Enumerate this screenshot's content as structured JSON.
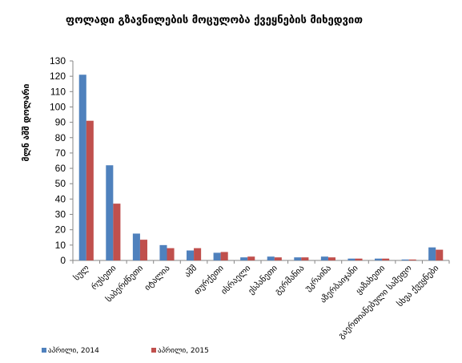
{
  "chart_data": {
    "type": "bar",
    "title": "ფოლადი გზავნილების მოცულობა ქვეყნების მიხედვით",
    "ylabel": "მლნ აშშ დოლარი",
    "xlabel": "",
    "ylim": [
      0,
      130
    ],
    "yticks": [
      0,
      10,
      20,
      30,
      40,
      50,
      60,
      70,
      80,
      90,
      100,
      110,
      120,
      130
    ],
    "grid": false,
    "legend_position": "bottom",
    "categories": [
      "სულ",
      "რუსეთი",
      "საბერძნეთი",
      "იტალია",
      "აშშ",
      "თურქეთი",
      "ისრაელი",
      "ესპანეთი",
      "გერმანია",
      "უკრაინა",
      "აზერბაიჯანი",
      "ყაზახეთი",
      "გაერთიანებული სამეფო",
      "სხვა ქვეყნები"
    ],
    "series": [
      {
        "name": "აპრილი, 2014",
        "color": "#4f81bd",
        "values": [
          121,
          62,
          17.5,
          10,
          6.5,
          5,
          2,
          2.5,
          2,
          2.5,
          1.2,
          1.2,
          0.6,
          8.5
        ]
      },
      {
        "name": "აპრილი, 2015",
        "color": "#c0504d",
        "values": [
          91,
          37,
          13.5,
          8,
          8,
          5.5,
          2.5,
          2,
          2,
          2,
          1.2,
          1.2,
          0.6,
          7
        ]
      }
    ]
  }
}
